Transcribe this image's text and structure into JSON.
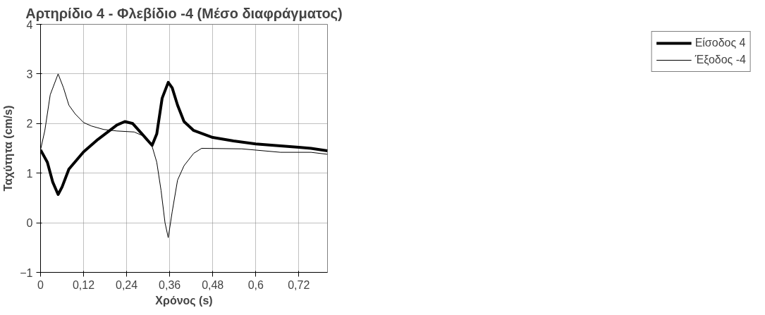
{
  "chart_data": {
    "type": "line",
    "title": "Αρτηρίδιο 4 - Φλεβίδιο -4 (Μέσο διαφράγματος)",
    "xlabel": "Χρόνος (s)",
    "ylabel": "Ταχύτητα (cm/s)",
    "xlim": [
      0,
      0.8
    ],
    "ylim": [
      -1,
      4
    ],
    "xticks": [
      0,
      {
        "value": 0.12,
        "label": "0,12"
      },
      {
        "value": 0.24,
        "label": "0,24"
      },
      {
        "value": 0.36,
        "label": "0,36"
      },
      {
        "value": 0.48,
        "label": "0,48"
      },
      {
        "value": 0.6,
        "label": "0,6"
      },
      {
        "value": 0.72,
        "label": "0,72"
      }
    ],
    "yticks": [
      -1,
      0,
      1,
      2,
      3,
      4
    ],
    "grid": true,
    "legend": "right",
    "series": [
      {
        "name": "Είσοδος 4",
        "color": "#000000",
        "x": [
          0,
          0.019,
          0.034,
          0.049,
          0.06,
          0.079,
          0.12,
          0.16,
          0.213,
          0.235,
          0.257,
          0.283,
          0.311,
          0.324,
          0.339,
          0.356,
          0.367,
          0.382,
          0.4,
          0.427,
          0.48,
          0.538,
          0.6,
          0.65,
          0.72,
          0.754,
          0.8
        ],
        "values": [
          1.47,
          1.22,
          0.82,
          0.57,
          0.72,
          1.08,
          1.43,
          1.68,
          1.97,
          2.04,
          2.0,
          1.79,
          1.56,
          1.79,
          2.51,
          2.83,
          2.72,
          2.37,
          2.04,
          1.86,
          1.72,
          1.65,
          1.59,
          1.56,
          1.52,
          1.5,
          1.45
        ]
      },
      {
        "name": "Έξοδος -4",
        "color": "#000000",
        "x": [
          0,
          0.012,
          0.027,
          0.049,
          0.064,
          0.079,
          0.097,
          0.12,
          0.142,
          0.176,
          0.213,
          0.261,
          0.283,
          0.311,
          0.324,
          0.336,
          0.347,
          0.356,
          0.367,
          0.382,
          0.4,
          0.427,
          0.449,
          0.561,
          0.669,
          0.754,
          0.8
        ],
        "values": [
          1.47,
          1.86,
          2.58,
          3.0,
          2.72,
          2.37,
          2.19,
          2.02,
          1.95,
          1.88,
          1.85,
          1.83,
          1.76,
          1.54,
          1.22,
          0.65,
          0,
          -0.3,
          0.22,
          0.86,
          1.15,
          1.4,
          1.5,
          1.49,
          1.42,
          1.42,
          1.38
        ]
      }
    ]
  }
}
